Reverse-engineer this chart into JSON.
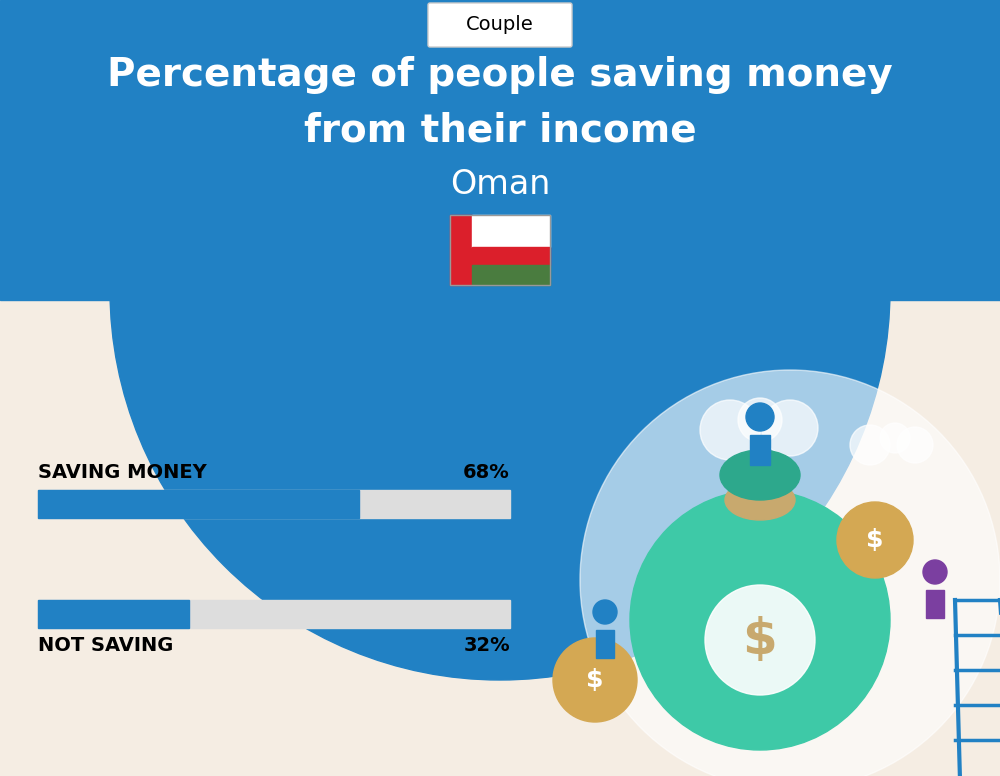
{
  "title_line1": "Percentage of people saving money",
  "title_line2": "from their income",
  "country": "Oman",
  "tab_label": "Couple",
  "saving_label": "SAVING MONEY",
  "saving_value": 68,
  "saving_text": "68%",
  "not_saving_label": "NOT SAVING",
  "not_saving_value": 32,
  "not_saving_text": "32%",
  "blue_color": "#2181C4",
  "bar_bg_color": "#DDDDDD",
  "title_color": "#FFFFFF",
  "background_bottom": "#F5EDE3",
  "label_color": "#000000",
  "tab_color": "#FFFFFF",
  "fig_width": 10.0,
  "fig_height": 7.76,
  "flag_red": "#DB1F2B",
  "flag_green": "#4A7C3F",
  "flag_white": "#FFFFFF",
  "illus_bg_color": "#FFFFFF"
}
